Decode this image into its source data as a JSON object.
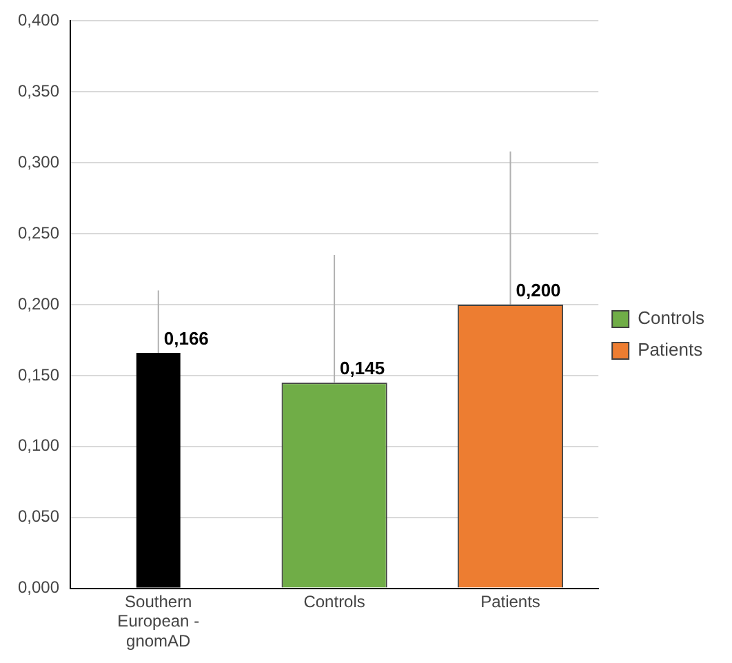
{
  "chart_data": {
    "type": "bar",
    "categories": [
      "Southern European - gnomAD",
      "Controls",
      "Patients"
    ],
    "series": [
      {
        "color": "#000000",
        "values": [
          0.166,
          null,
          null
        ],
        "errors": [
          [
            0.166,
            0.21
          ],
          null,
          null
        ],
        "value_labels": [
          "0,166",
          null,
          null
        ]
      },
      {
        "name": "Controls",
        "color": "#70ad47",
        "values": [
          null,
          0.145,
          null
        ],
        "errors": [
          null,
          [
            0.145,
            0.235
          ],
          null
        ],
        "value_labels": [
          null,
          "0,145",
          null
        ]
      },
      {
        "name": "Patients",
        "color": "#ed7d31",
        "values": [
          null,
          null,
          0.2
        ],
        "errors": [
          null,
          null,
          [
            0.2,
            0.308
          ]
        ],
        "value_labels": [
          null,
          null,
          "0,200"
        ]
      }
    ],
    "ylim": [
      0,
      0.4
    ],
    "yticks": [
      {
        "value": 0,
        "label": "0,000"
      },
      {
        "value": 0.05,
        "label": "0,050"
      },
      {
        "value": 0.1,
        "label": "0,100"
      },
      {
        "value": 0.15,
        "label": "0,150"
      },
      {
        "value": 0.2,
        "label": "0,200"
      },
      {
        "value": 0.25,
        "label": "0,250"
      },
      {
        "value": 0.3,
        "label": "0,300"
      },
      {
        "value": 0.35,
        "label": "0,350"
      },
      {
        "value": 0.4,
        "label": "0,400"
      }
    ],
    "grid": "y",
    "legend": "right"
  }
}
